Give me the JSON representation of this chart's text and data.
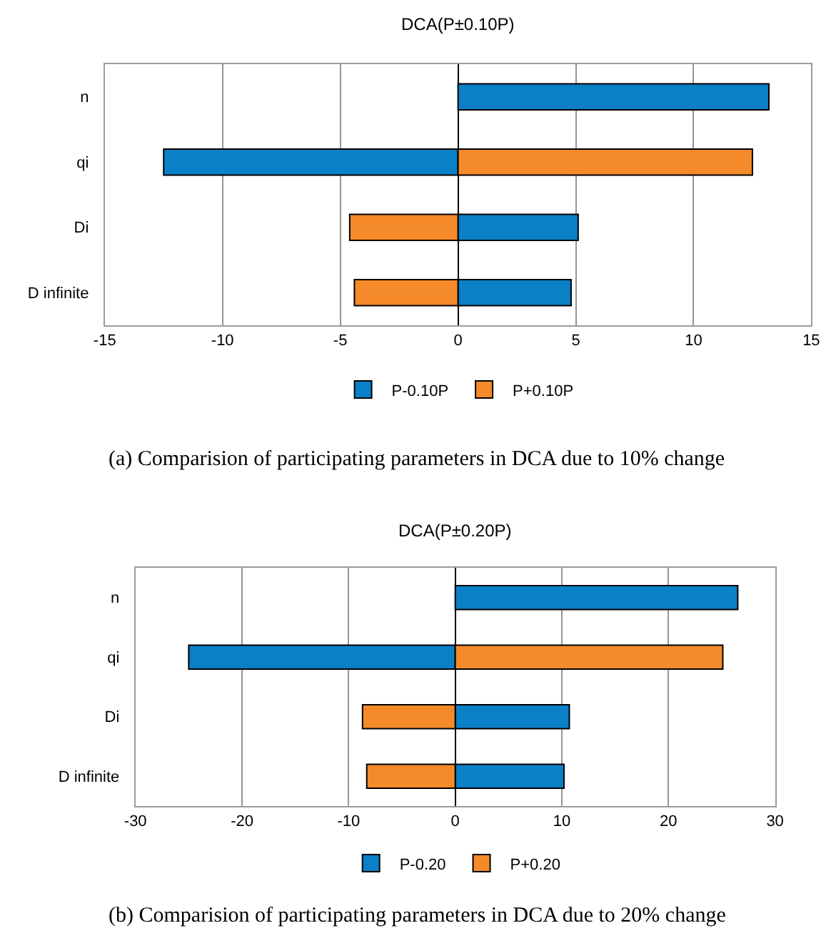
{
  "chart_data": [
    {
      "type": "bar",
      "orientation": "horizontal",
      "title": "DCA(P±0.10P)",
      "categories": [
        "n",
        "qi",
        "Di",
        "D infinite"
      ],
      "series": [
        {
          "name": "P-0.10P",
          "color": "#0a80c6",
          "values": [
            13.2,
            -12.5,
            5.1,
            4.8
          ]
        },
        {
          "name": "P+0.10P",
          "color": "#f58a2a",
          "values": [
            null,
            12.5,
            -4.6,
            -4.4
          ]
        }
      ],
      "stacked": true,
      "xlim": [
        -15,
        15
      ],
      "xticks": [
        -15,
        -10,
        -5,
        0,
        5,
        10,
        15
      ],
      "grid": "x",
      "legend": "bottom",
      "annotations": [
        "(a) Comparision of participating parameters in DCA due to 10% change"
      ]
    },
    {
      "type": "bar",
      "orientation": "horizontal",
      "title": "DCA(P±0.20P)",
      "categories": [
        "n",
        "qi",
        "Di",
        "D infinite"
      ],
      "series": [
        {
          "name": "P-0.20",
          "color": "#0a80c6",
          "values": [
            26.5,
            -25.0,
            10.7,
            10.2
          ]
        },
        {
          "name": "P+0.20",
          "color": "#f58a2a",
          "values": [
            null,
            25.1,
            -8.7,
            -8.3
          ]
        }
      ],
      "stacked": true,
      "xlim": [
        -30,
        30
      ],
      "xticks": [
        -30,
        -20,
        -10,
        0,
        10,
        20,
        30
      ],
      "grid": "x",
      "legend": "bottom",
      "annotations": [
        "(b) Comparision of participating parameters in DCA due to 20% change"
      ]
    }
  ]
}
